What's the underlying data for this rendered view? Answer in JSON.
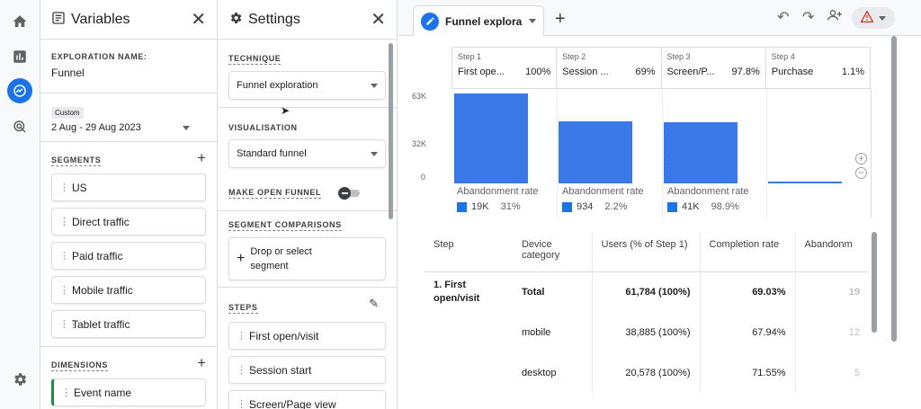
{
  "rail": {
    "items": [
      {
        "icon": "home-icon"
      },
      {
        "icon": "reports-icon"
      },
      {
        "icon": "explore-icon",
        "active": true
      },
      {
        "icon": "advertising-icon"
      },
      {
        "icon": "settings-icon"
      }
    ]
  },
  "variables": {
    "title": "Variables",
    "exploration_name_label": "EXPLORATION NAME:",
    "exploration_name": "Funnel",
    "date_badge": "Custom",
    "date_range": "2 Aug - 29 Aug 2023",
    "segments_label": "SEGMENTS",
    "segments": [
      "US",
      "Direct traffic",
      "Paid traffic",
      "Mobile traffic",
      "Tablet traffic"
    ],
    "dimensions_label": "DIMENSIONS",
    "dimensions": [
      "Event name"
    ]
  },
  "settings": {
    "title": "Settings",
    "technique_label": "TECHNIQUE",
    "technique_value": "Funnel exploration",
    "visualisation_label": "VISUALISATION",
    "visualisation_value": "Standard funnel",
    "open_funnel_label": "MAKE OPEN FUNNEL",
    "segment_comparisons_label": "SEGMENT COMPARISONS",
    "drop_segment_line1": "Drop or select",
    "drop_segment_line2": "segment",
    "steps_label": "STEPS",
    "steps": [
      "First open/visit",
      "Session start",
      "Screen/Page view"
    ]
  },
  "tab": {
    "title": "Funnel explora",
    "add": "+"
  },
  "chart_data": {
    "type": "bar",
    "categories": [
      "First open/visit",
      "Session start",
      "Screen/Page view",
      "Purchase"
    ],
    "steps": [
      {
        "step": "Step 1",
        "name": "First ope...",
        "pct": "100%",
        "value": 61784,
        "abandon": "19K",
        "abandon_pct": "31%"
      },
      {
        "step": "Step 2",
        "name": "Session ...",
        "pct": "69%",
        "value": 42800,
        "abandon": "934",
        "abandon_pct": "2.2%"
      },
      {
        "step": "Step 3",
        "name": "Screen/P...",
        "pct": "97.8%",
        "value": 41800,
        "abandon": "41K",
        "abandon_pct": "98.9%"
      },
      {
        "step": "Step 4",
        "name": "Purchase",
        "pct": "1.1%",
        "value": 460
      }
    ],
    "yticks": [
      "63K",
      "32K",
      "0"
    ],
    "ylim": [
      0,
      63000
    ],
    "abandonment_label": "Abandonment rate",
    "bar_color": "#3b78e7"
  },
  "table": {
    "headers": [
      "Step",
      "Device category",
      "Users (% of Step 1)",
      "Completion rate",
      "Abandonm"
    ],
    "rows": [
      {
        "step": "1. First open/visit",
        "device": "Total",
        "users": "61,784 (100%)",
        "completion": "69.03%",
        "abandon": "19"
      },
      {
        "step": "",
        "device": "mobile",
        "users": "38,885 (100%)",
        "completion": "67.94%",
        "abandon": "12"
      },
      {
        "step": "",
        "device": "desktop",
        "users": "20,578 (100%)",
        "completion": "71.55%",
        "abandon": "5"
      }
    ]
  }
}
